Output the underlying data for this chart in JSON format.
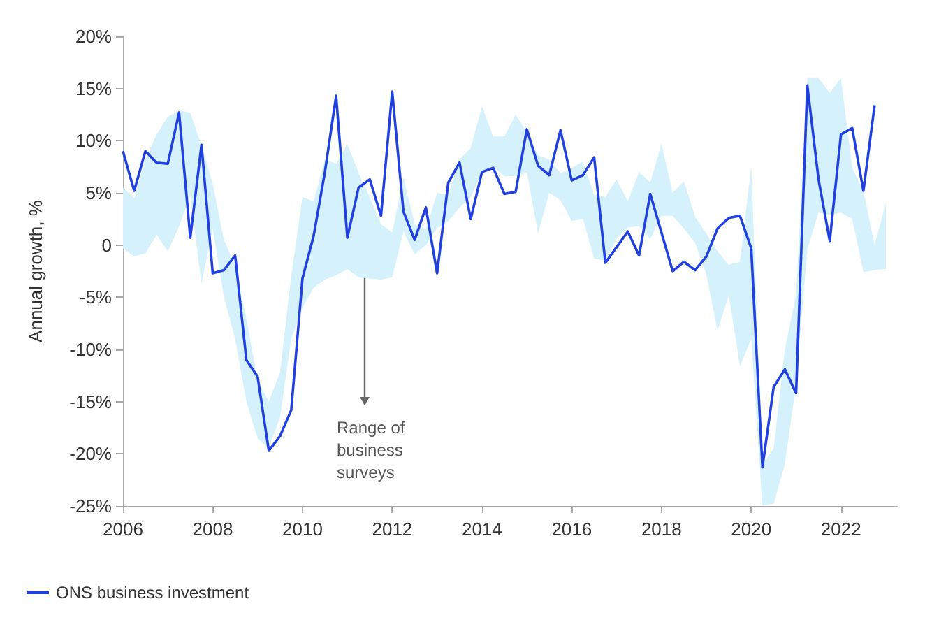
{
  "chart_data": {
    "type": "line",
    "ylabel": "Annual growth, %",
    "legend": "bottom left",
    "marker": "none",
    "grid": false,
    "x": [
      2006,
      2006.25,
      2006.5,
      2006.75,
      2007,
      2007.25,
      2007.5,
      2007.75,
      2008,
      2008.25,
      2008.5,
      2008.75,
      2009,
      2009.25,
      2009.5,
      2009.75,
      2010,
      2010.25,
      2010.5,
      2010.75,
      2011,
      2011.25,
      2011.5,
      2011.75,
      2012,
      2012.25,
      2012.5,
      2012.75,
      2013,
      2013.25,
      2013.5,
      2013.75,
      2014,
      2014.25,
      2014.5,
      2014.75,
      2015,
      2015.25,
      2015.5,
      2015.75,
      2016,
      2016.25,
      2016.5,
      2016.75,
      2017,
      2017.25,
      2017.5,
      2017.75,
      2018,
      2018.25,
      2018.5,
      2018.75,
      2019,
      2019.25,
      2019.5,
      2019.75,
      2020,
      2020.25,
      2020.5,
      2020.75,
      2021,
      2021.25,
      2021.5,
      2021.75,
      2022,
      2022.25,
      2022.5,
      2022.75,
      2023
    ],
    "xlim": [
      2006,
      2023.25
    ],
    "xticks": [
      2006,
      2008,
      2010,
      2012,
      2014,
      2016,
      2018,
      2020,
      2022
    ],
    "ylim": [
      -25,
      20
    ],
    "yticks": [
      {
        "value": -25,
        "label": "-25%"
      },
      {
        "value": -20,
        "label": "-20%"
      },
      {
        "value": -15,
        "label": "-15%"
      },
      {
        "value": -10,
        "label": "-10%"
      },
      {
        "value": -5,
        "label": "-5%"
      },
      {
        "value": 0,
        "label": "0"
      },
      {
        "value": 5,
        "label": "5%"
      },
      {
        "value": 10,
        "label": "10%"
      },
      {
        "value": 15,
        "label": "15%"
      },
      {
        "value": 20,
        "label": "20%"
      }
    ],
    "annotations": [
      "Range of business surveys"
    ],
    "series": [
      {
        "name": "ONS business investment",
        "color": "#2040e0",
        "values": [
          9.0,
          5.2,
          9.0,
          7.9,
          7.8,
          12.7,
          0.7,
          9.6,
          -2.7,
          -2.4,
          -1.0,
          -11.0,
          -12.6,
          -19.7,
          -18.3,
          -15.8,
          -3.2,
          0.9,
          7.0,
          14.3,
          0.7,
          5.5,
          6.3,
          2.8,
          14.7,
          3.2,
          0.5,
          3.6,
          -2.7,
          6.0,
          7.9,
          2.5,
          7.0,
          7.4,
          4.9,
          5.1,
          11.1,
          7.6,
          6.7,
          11.0,
          6.2,
          6.7,
          8.4,
          -1.7,
          -0.2,
          1.3,
          -1.0,
          4.9,
          1.2,
          -2.5,
          -1.6,
          -2.4,
          -1.1,
          1.6,
          2.6,
          2.8,
          -0.3,
          -21.3,
          -13.6,
          -11.9,
          -14.2,
          15.3,
          6.3,
          0.4,
          10.6,
          11.2,
          5.2,
          13.4,
          null
        ],
        "upper": [
          5.5,
          4.5,
          8.2,
          10.6,
          12.3,
          12.9,
          12.7,
          9.5,
          5.9,
          0.5,
          -2,
          -7,
          -13,
          -15,
          -12.2,
          -3,
          4.6,
          4.2,
          8.2,
          7.8,
          9.7,
          6.9,
          4.6,
          2.0,
          1.2,
          6.5,
          2.0,
          1.5,
          5.0,
          4.8,
          8.2,
          9.3,
          13.3,
          10.4,
          10.4,
          12.5,
          10.8,
          8.6,
          8.2,
          6.9,
          7.4,
          8.0,
          4.8,
          4.6,
          6.3,
          4.2,
          7.0,
          6.0,
          9.7,
          5.0,
          6.1,
          2.7,
          1.1,
          -0.6,
          -1.9,
          -1.6,
          7.6,
          -21,
          -19.5,
          -10,
          -4.7,
          16.0,
          16.0,
          14.6,
          16.0,
          7.4,
          5.2,
          0,
          4.0
        ],
        "lower": [
          -0.3,
          -1.1,
          -0.8,
          1.0,
          -0.6,
          1.8,
          4.8,
          -3.7,
          1.6,
          -5,
          -9,
          -15,
          -18.5,
          -19.5,
          -16.5,
          -9,
          -6,
          -4.1,
          -3.3,
          -2.9,
          -2.3,
          -3.1,
          -3.2,
          -3.3,
          -3.1,
          1.3,
          -0.9,
          0,
          1.6,
          2.3,
          3.6,
          4.6,
          7.0,
          7.5,
          6.6,
          6.6,
          7.0,
          1.1,
          5.0,
          4.3,
          2.3,
          2.5,
          -1.3,
          -1.5,
          0.6,
          1.7,
          1.8,
          0.6,
          2.8,
          2.8,
          1.6,
          0.2,
          -2.8,
          -8.2,
          -4.8,
          -11.6,
          -9,
          -25,
          -24.8,
          -21,
          -13.3,
          -0.4,
          3.1,
          2.9,
          3.1,
          2.5,
          -2.6,
          -2.4,
          -2.3
        ]
      }
    ]
  }
}
